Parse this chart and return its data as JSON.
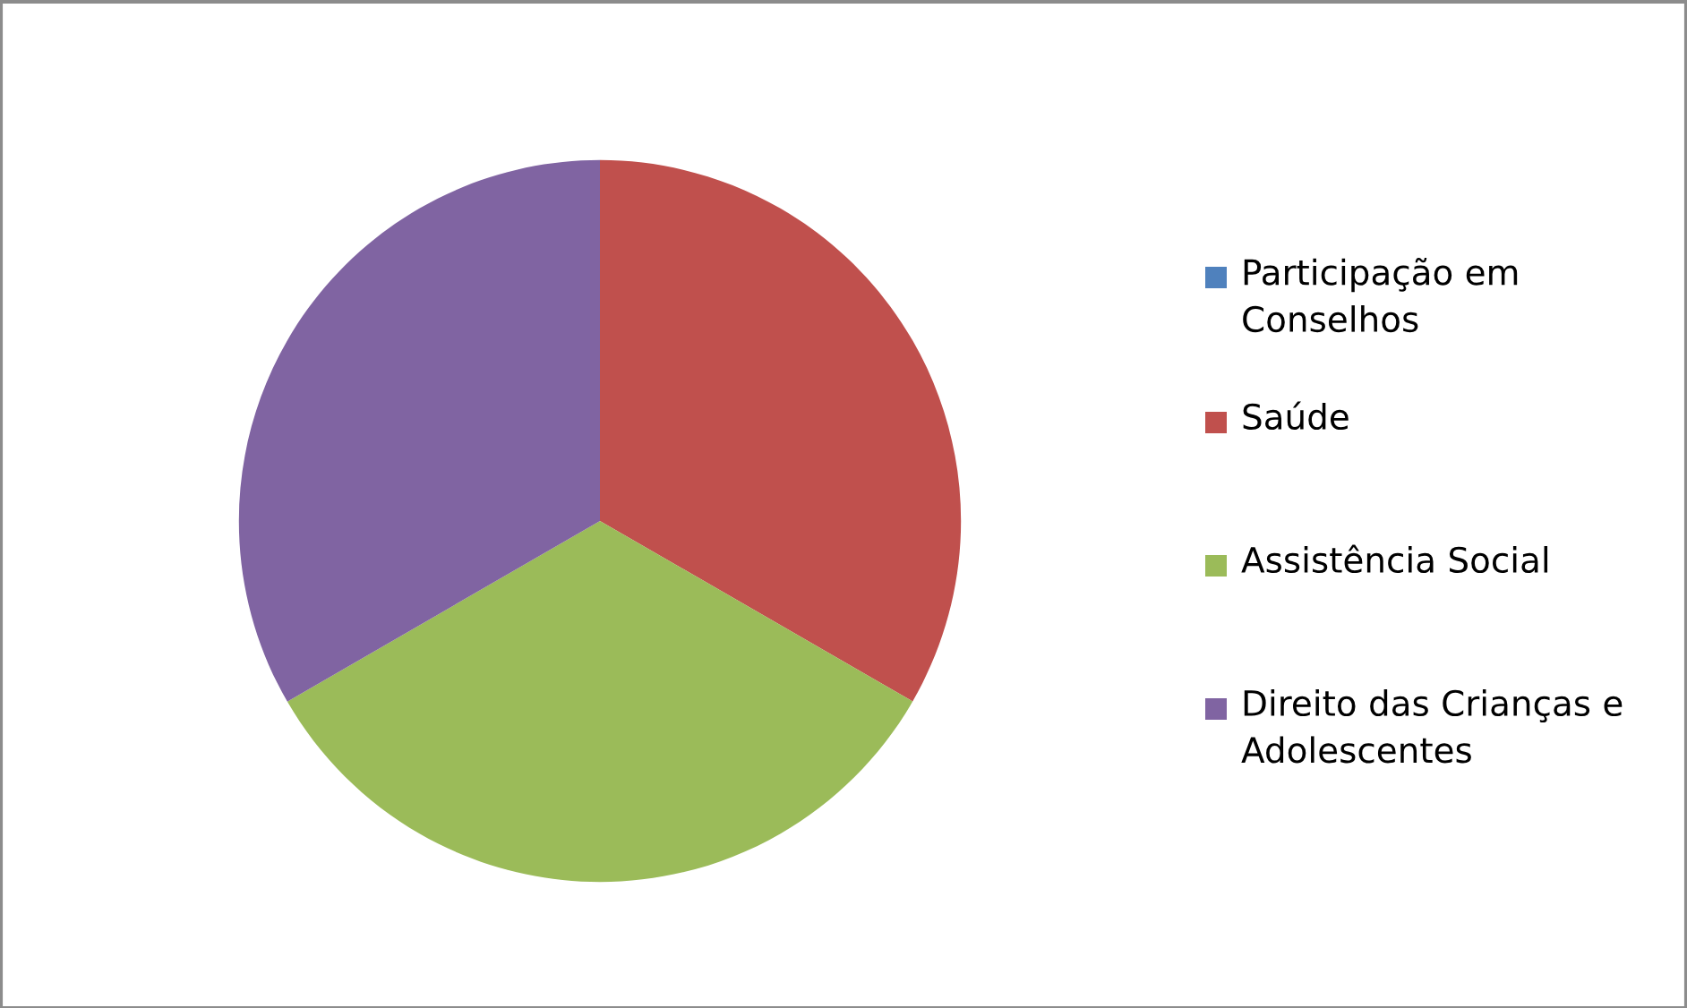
{
  "chart_data": {
    "type": "pie",
    "categories": [
      "Participação em Conselhos",
      "Saúde",
      "Assistência Social",
      "Direito das Crianças e Adolescentes"
    ],
    "values": [
      0,
      33.33,
      33.33,
      33.34
    ],
    "colors": [
      "#4f81bd",
      "#c0504d",
      "#9bbb59",
      "#8064a2"
    ],
    "legend": "right"
  }
}
